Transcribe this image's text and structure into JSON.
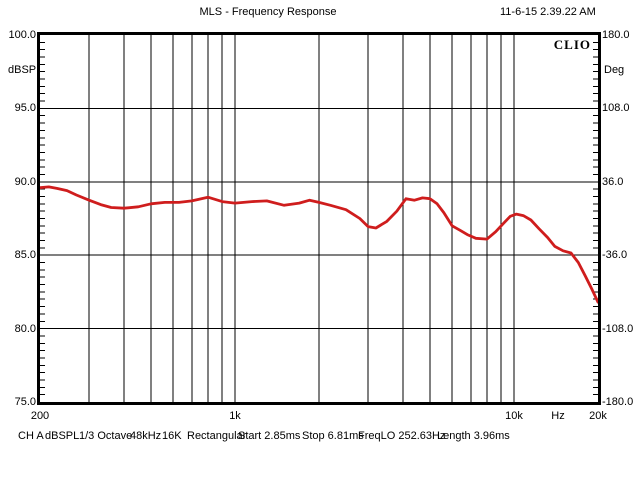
{
  "header": {
    "title": "MLS - Frequency Response",
    "timestamp": "11-6-15 2.39.22 AM"
  },
  "watermark": "CLIO",
  "colors": {
    "curve": "#cf1d1d",
    "grid": "#000000",
    "background": "#ffffff",
    "text": "#000000"
  },
  "status_bar": {
    "items": [
      "CH A",
      "dBSPL",
      "1/3 Octave",
      "48kHz",
      "16K",
      "Rectangular",
      "Start 2.85ms",
      "Stop 6.81ms",
      "FreqLO 252.63Hz",
      "Length 3.96ms"
    ]
  },
  "chart_data": {
    "type": "line",
    "title": "MLS - Frequency Response",
    "xlabel": "Hz",
    "ylabel": "dBSPL",
    "y2label": "Deg",
    "x_scale": "log",
    "x_range": [
      200,
      20000
    ],
    "y_range": [
      75,
      100
    ],
    "y2_range": [
      -180,
      180
    ],
    "grid": true,
    "x_gridlines": [
      300,
      400,
      500,
      600,
      700,
      800,
      900,
      1000,
      2000,
      3000,
      4000,
      5000,
      6000,
      7000,
      8000,
      9000,
      10000
    ],
    "y_gridlines": [
      80,
      85,
      90,
      95
    ],
    "y_minor_step": 0.5,
    "left_axis": {
      "label": "dBSPL",
      "tick_labels": [
        "100.0",
        "95.0",
        "90.0",
        "85.0",
        "80.0",
        "75.0"
      ],
      "tick_values": [
        100,
        95,
        90,
        85,
        80,
        75
      ]
    },
    "right_axis": {
      "label": "Deg",
      "tick_labels": [
        "180.0",
        "108.0",
        "36.0",
        "-36.0",
        "-108.0",
        "-180.0"
      ],
      "tick_values": [
        180,
        108,
        36,
        -36,
        -108,
        -180
      ]
    },
    "bottom_axis": {
      "unit": "Hz",
      "tick_labels": [
        {
          "label": "200",
          "value": 200
        },
        {
          "label": "1k",
          "value": 1000
        },
        {
          "label": "10k",
          "value": 10000
        },
        {
          "label": "20k",
          "value": 20000
        }
      ]
    },
    "series": [
      {
        "name": "CH A dBSPL",
        "color": "#cf1d1d",
        "x": [
          200,
          215,
          230,
          250,
          270,
          300,
          330,
          360,
          400,
          450,
          500,
          560,
          630,
          700,
          800,
          900,
          1000,
          1150,
          1300,
          1500,
          1700,
          1850,
          2000,
          2200,
          2500,
          2800,
          3000,
          3200,
          3500,
          3800,
          4100,
          4400,
          4700,
          5000,
          5300,
          5600,
          6000,
          6400,
          6800,
          7300,
          8000,
          8600,
          9200,
          9700,
          10200,
          10800,
          11500,
          12300,
          13200,
          14000,
          15000,
          16000,
          17000,
          18000,
          19000,
          20000
        ],
        "y": [
          89.6,
          89.65,
          89.55,
          89.4,
          89.1,
          88.75,
          88.45,
          88.25,
          88.2,
          88.3,
          88.5,
          88.6,
          88.6,
          88.7,
          88.95,
          88.65,
          88.55,
          88.65,
          88.7,
          88.4,
          88.55,
          88.75,
          88.6,
          88.4,
          88.1,
          87.5,
          86.95,
          86.85,
          87.3,
          88.0,
          88.85,
          88.75,
          88.9,
          88.85,
          88.5,
          87.9,
          87.0,
          86.7,
          86.4,
          86.15,
          86.1,
          86.6,
          87.2,
          87.65,
          87.8,
          87.7,
          87.4,
          86.8,
          86.2,
          85.6,
          85.3,
          85.15,
          84.5,
          83.6,
          82.7,
          81.8
        ]
      }
    ]
  }
}
